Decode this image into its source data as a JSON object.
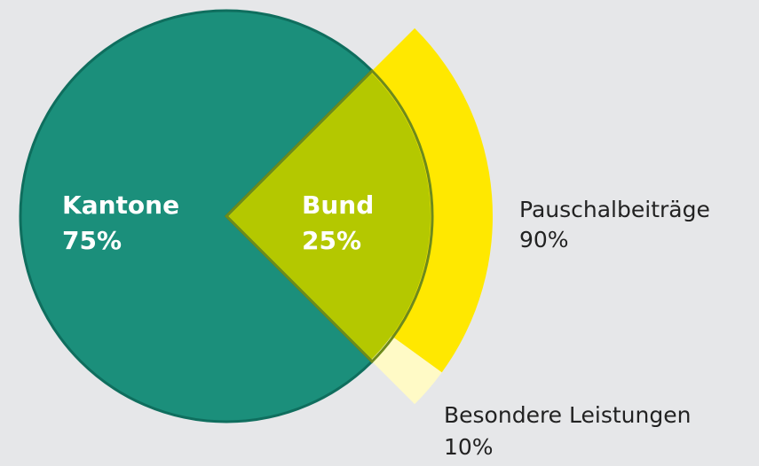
{
  "chart_data": {
    "type": "pie",
    "categories": [
      "Kantone",
      "Bund"
    ],
    "values": [
      75,
      25
    ],
    "value_labels": [
      "75%",
      "25%"
    ],
    "colors": [
      "#1b8f7b",
      "#b4c800"
    ],
    "breakdown": {
      "categories": [
        "Pauschalbeiträge",
        "Besondere Leistungen"
      ],
      "values": [
        90,
        10
      ],
      "value_labels": [
        "90%",
        "10%"
      ],
      "colors": [
        "#ffe800",
        "#fffac6"
      ]
    }
  }
}
